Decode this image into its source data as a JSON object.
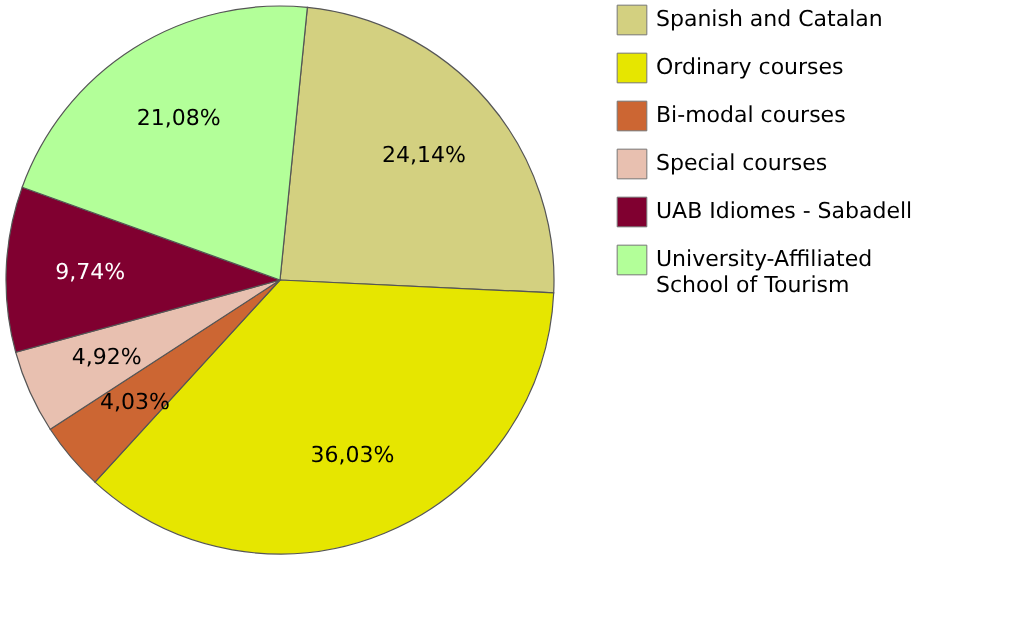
{
  "chart_data": {
    "type": "pie",
    "categories": [
      "Spanish and Catalan",
      "Ordinary courses",
      "Bi-modal courses",
      "Special courses",
      "UAB Idiomes - Sabadell",
      "University-Affiliated School of Tourism"
    ],
    "values": [
      24.14,
      36.03,
      4.03,
      4.92,
      9.74,
      21.08
    ],
    "value_labels": [
      "24,14%",
      "36,03%",
      "4,03%",
      "4,92%",
      "9,74%",
      "21,08%"
    ],
    "colors": [
      "#d3d080",
      "#e6e600",
      "#cc6633",
      "#e8c0b0",
      "#800030",
      "#b3ff99"
    ],
    "legend": "right"
  }
}
